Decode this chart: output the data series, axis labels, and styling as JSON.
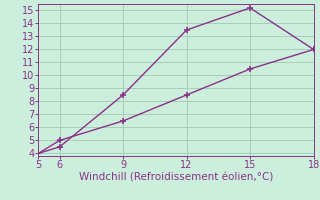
{
  "line1_x": [
    5,
    6,
    9,
    12,
    15,
    18
  ],
  "line1_y": [
    4.0,
    5.0,
    6.5,
    8.5,
    10.5,
    12.0
  ],
  "line2_x": [
    5,
    6,
    9,
    12,
    15,
    18
  ],
  "line2_y": [
    4.0,
    4.5,
    8.5,
    13.5,
    15.2,
    12.0
  ],
  "line_color": "#883388",
  "marker": "+",
  "marker_size": 5,
  "marker_lw": 1.2,
  "line_width": 1.0,
  "xlabel": "Windchill (Refroidissement éolien,°C)",
  "xlim": [
    5,
    18
  ],
  "ylim": [
    3.8,
    15.5
  ],
  "xticks": [
    5,
    6,
    9,
    12,
    15,
    18
  ],
  "yticks": [
    4,
    5,
    6,
    7,
    8,
    9,
    10,
    11,
    12,
    13,
    14,
    15
  ],
  "bg_color": "#cceedd",
  "grid_color": "#aaccbb",
  "xlabel_color": "#883388",
  "xlabel_fontsize": 7.5,
  "tick_color": "#883388",
  "tick_fontsize": 7
}
